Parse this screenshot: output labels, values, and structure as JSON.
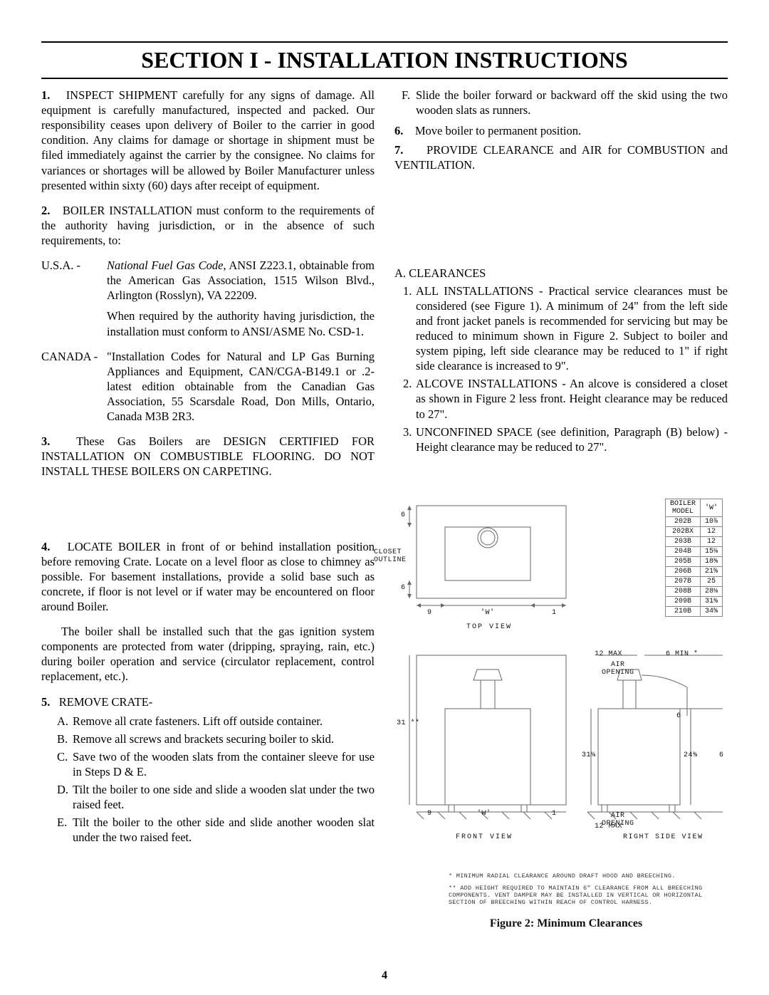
{
  "title": "SECTION I - INSTALLATION INSTRUCTIONS",
  "page_number": "4",
  "left": {
    "p1": {
      "num": "1.",
      "text": "INSPECT SHIPMENT carefully for any signs of damage. All equipment is carefully manufactured, inspected and packed. Our responsibility ceases upon delivery of Boiler to the carrier in good condition. Any claims for damage or shortage in shipment must be filed immediately against the carrier by the consignee. No claims for variances or shortages will be allowed by Boiler Manufacturer unless presented within sixty (60) days after receipt of equipment."
    },
    "p2": {
      "num": "2.",
      "text": "BOILER INSTALLATION must conform to the requirements of the authority having jurisdiction, or in the absence of such requirements, to:"
    },
    "codes": {
      "usa_label": "U.S.A. -",
      "usa_text1": ", ANSI Z223.1, obtainable from the American Gas Association, 1515 Wilson Blvd., Arlington (Rosslyn), VA 22209.",
      "usa_ital": "National Fuel Gas Code",
      "usa_text2": "When required by the authority having jurisdiction, the installation must conform to ANSI/ASME No. CSD-1.",
      "can_label": "CANADA -",
      "can_text": "\"Installation Codes for Natural and LP Gas Burning Appliances and Equipment, CAN/CGA-B149.1 or .2-latest edition obtainable from the Canadian Gas Association, 55 Scarsdale Road, Don Mills, Ontario, Canada M3B 2R3."
    },
    "p3": {
      "num": "3.",
      "text": "These Gas Boilers are DESIGN CERTIFIED FOR INSTALLATION ON COMBUSTIBLE FLOORING. DO NOT INSTALL THESE BOILERS ON CARPETING."
    },
    "p4": {
      "num": "4.",
      "text": "LOCATE BOILER in front of or behind installation position before removing Crate. Locate on a level floor as close to chimney as possible. For basement installations, provide a solid base such as concrete, if floor is not level or if water may be encountered on floor around Boiler."
    },
    "p4b": "The boiler shall be installed such that the gas ignition system components are protected from water (dripping, spraying, rain, etc.) during boiler operation and service (circulator replacement, control replacement, etc.).",
    "p5": {
      "num": "5.",
      "text": "REMOVE CRATE-"
    },
    "p5items": {
      "A": "Remove all crate fasteners.  Lift off outside container.",
      "B": "Remove all screws and brackets securing boiler to skid.",
      "C": "Save two of the wooden slats from the container sleeve for use in Steps D & E.",
      "D": "Tilt the boiler to one side and slide a wooden slat under the two raised feet.",
      "E": "Tilt the boiler to the other side and slide another wooden slat under the two raised feet."
    }
  },
  "right": {
    "F": "Slide the boiler forward or backward off the skid using the two wooden slats as runners.",
    "p6": {
      "num": "6.",
      "text": "Move boiler to permanent position."
    },
    "p7": {
      "num": "7.",
      "text": "PROVIDE CLEARANCE and AIR for COMBUSTION and VENTILATION."
    },
    "A_head": "A. CLEARANCES",
    "c1": "ALL INSTALLATIONS - Practical service clearances must be considered (see Figure 1).  A minimum of 24\" from the left side and front jacket panels is recommended for servicing but may be reduced to minimum shown in Figure 2.  Subject to boiler and system piping, left side clearance may be reduced to 1\" if right side clearance is increased to 9\".",
    "c2": "ALCOVE INSTALLATIONS - An alcove is considered a closet as shown in Figure 2 less front.  Height clearance may be reduced to 27\".",
    "c3": "UNCONFINED SPACE (see definition, Paragraph (B) below) - Height clearance may be reduced to 27\"."
  },
  "figure": {
    "caption": "Figure 2:  Minimum Clearances",
    "labels": {
      "closet": "CLOSET",
      "outline": "OUTLINE",
      "topview": "TOP VIEW",
      "frontview": "FRONT VIEW",
      "rightview": "RIGHT SIDE VIEW",
      "w": "'W'",
      "six": "6",
      "nine": "9",
      "one": "1",
      "thirtyone": "31",
      "thirtyoneone8": "31⅛",
      "twentyfour": "24⅜",
      "twelvemax": "12 MAX",
      "sixmin": "6 MIN",
      "airopening": "AIR\nOPENING",
      "star": "*",
      "dstar": "**"
    },
    "footnote1": "*  MINIMUM RADIAL CLEARANCE AROUND DRAFT HOOD AND BREECHING.",
    "footnote2": "** ADD HEIGHT REQUIRED TO MAINTAIN 6\" CLEARANCE FROM ALL BREECHING COMPONENTS. VENT DAMPER MAY BE INSTALLED IN VERTICAL OR HORIZONTAL SECTION OF BREECHING WITHIN REACH OF CONTROL HARNESS.",
    "table": {
      "headers": [
        "BOILER\nMODEL",
        "'W'"
      ],
      "rows": [
        [
          "202B",
          "10⅞"
        ],
        [
          "202BX",
          "12"
        ],
        [
          "203B",
          "12"
        ],
        [
          "204B",
          "15⅛"
        ],
        [
          "205B",
          "18⅜"
        ],
        [
          "206B",
          "21⅝"
        ],
        [
          "207B",
          "25"
        ],
        [
          "208B",
          "28⅛"
        ],
        [
          "209B",
          "31⅜"
        ],
        [
          "210B",
          "34⅝"
        ]
      ]
    }
  },
  "colors": {
    "text": "#000000",
    "bg": "#ffffff",
    "line": "#000000",
    "figline": "#666666"
  }
}
